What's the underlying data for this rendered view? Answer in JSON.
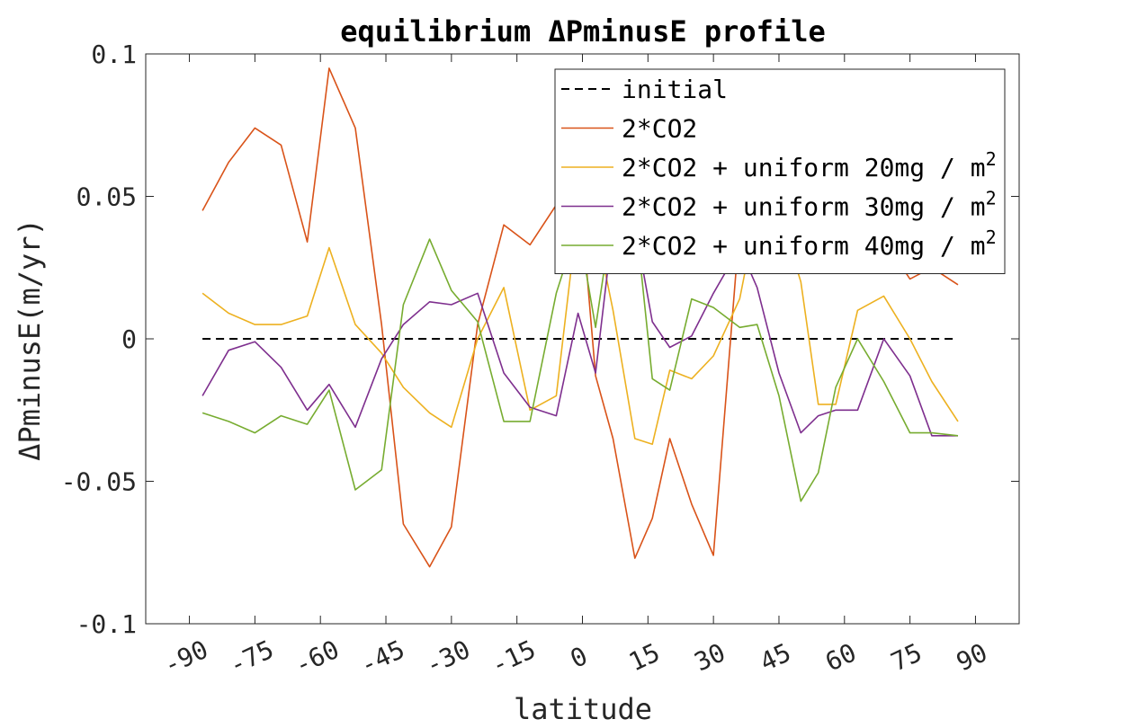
{
  "chart_data": {
    "type": "line",
    "title": "equilibrium ΔPminusE profile",
    "xlabel": "latitude",
    "ylabel": "ΔPminusE(m/yr)",
    "xlim": [
      -100,
      100
    ],
    "ylim": [
      -0.1,
      0.1
    ],
    "xticks": [
      "-90",
      "-75",
      "-60",
      "-45",
      "-30",
      "-15",
      "0",
      "15",
      "30",
      "45",
      "60",
      "75",
      "90"
    ],
    "yticks": [
      "-0.1",
      "-0.05",
      "0",
      "0.05",
      "0.1"
    ],
    "grid": false,
    "legend_position": "top-right",
    "x": [
      -87,
      -81,
      -75,
      -69,
      -63,
      -58,
      -52,
      -46,
      -41,
      -35,
      -30,
      -24,
      -18,
      -12,
      -6,
      -1,
      3,
      7,
      12,
      16,
      20,
      25,
      30,
      36,
      40,
      45,
      50,
      54,
      58,
      63,
      69,
      75,
      80,
      86
    ],
    "series": [
      {
        "name": "initial",
        "color": "#000000",
        "dash": true,
        "values": [
          0,
          0,
          0,
          0,
          0,
          0,
          0,
          0,
          0,
          0,
          0,
          0,
          0,
          0,
          0,
          0,
          0,
          0,
          0,
          0,
          0,
          0,
          0,
          0,
          0,
          0,
          0,
          0,
          0,
          0,
          0,
          0,
          0,
          0
        ]
      },
      {
        "name": "2*CO2",
        "color": "#D95319",
        "values": [
          0.045,
          0.062,
          0.074,
          0.068,
          0.034,
          0.095,
          0.074,
          0.005,
          -0.065,
          -0.08,
          -0.066,
          0.005,
          0.04,
          0.033,
          0.047,
          0.06,
          -0.013,
          -0.035,
          -0.077,
          -0.063,
          -0.035,
          -0.058,
          -0.076,
          0.04,
          0.05,
          0.055,
          0.05,
          0.05,
          0.045,
          0.04,
          0.035,
          0.021,
          0.025,
          0.019
        ]
      },
      {
        "name": "2*CO2 + uniform 20mg / m",
        "superscript": "2",
        "color": "#EDB120",
        "values": [
          0.016,
          0.009,
          0.005,
          0.005,
          0.008,
          0.032,
          0.005,
          -0.005,
          -0.017,
          -0.026,
          -0.031,
          0.0,
          0.018,
          -0.025,
          -0.02,
          0.045,
          0.04,
          0.01,
          -0.035,
          -0.037,
          -0.011,
          -0.014,
          -0.006,
          0.014,
          0.045,
          0.045,
          0.02,
          -0.023,
          -0.023,
          0.01,
          0.015,
          0.0,
          -0.015,
          -0.029
        ]
      },
      {
        "name": "2*CO2 + uniform 30mg / m",
        "superscript": "2",
        "color": "#7E2F8E",
        "values": [
          -0.02,
          -0.004,
          -0.001,
          -0.01,
          -0.025,
          -0.016,
          -0.031,
          -0.007,
          0.005,
          0.013,
          0.012,
          0.016,
          -0.012,
          -0.024,
          -0.027,
          0.009,
          -0.012,
          0.04,
          0.04,
          0.006,
          -0.003,
          0.001,
          0.016,
          0.032,
          0.018,
          -0.012,
          -0.033,
          -0.027,
          -0.025,
          -0.025,
          0.0,
          -0.013,
          -0.034,
          -0.034
        ]
      },
      {
        "name": "2*CO2 + uniform 40mg / m",
        "superscript": "2",
        "color": "#77AC30",
        "values": [
          -0.026,
          -0.029,
          -0.033,
          -0.027,
          -0.03,
          -0.018,
          -0.053,
          -0.046,
          0.012,
          0.035,
          0.017,
          0.006,
          -0.029,
          -0.029,
          0.016,
          0.04,
          0.004,
          0.045,
          0.045,
          -0.014,
          -0.018,
          0.014,
          0.011,
          0.004,
          0.005,
          -0.02,
          -0.057,
          -0.047,
          -0.017,
          0.0,
          -0.015,
          -0.033,
          -0.033,
          -0.034
        ]
      }
    ]
  }
}
